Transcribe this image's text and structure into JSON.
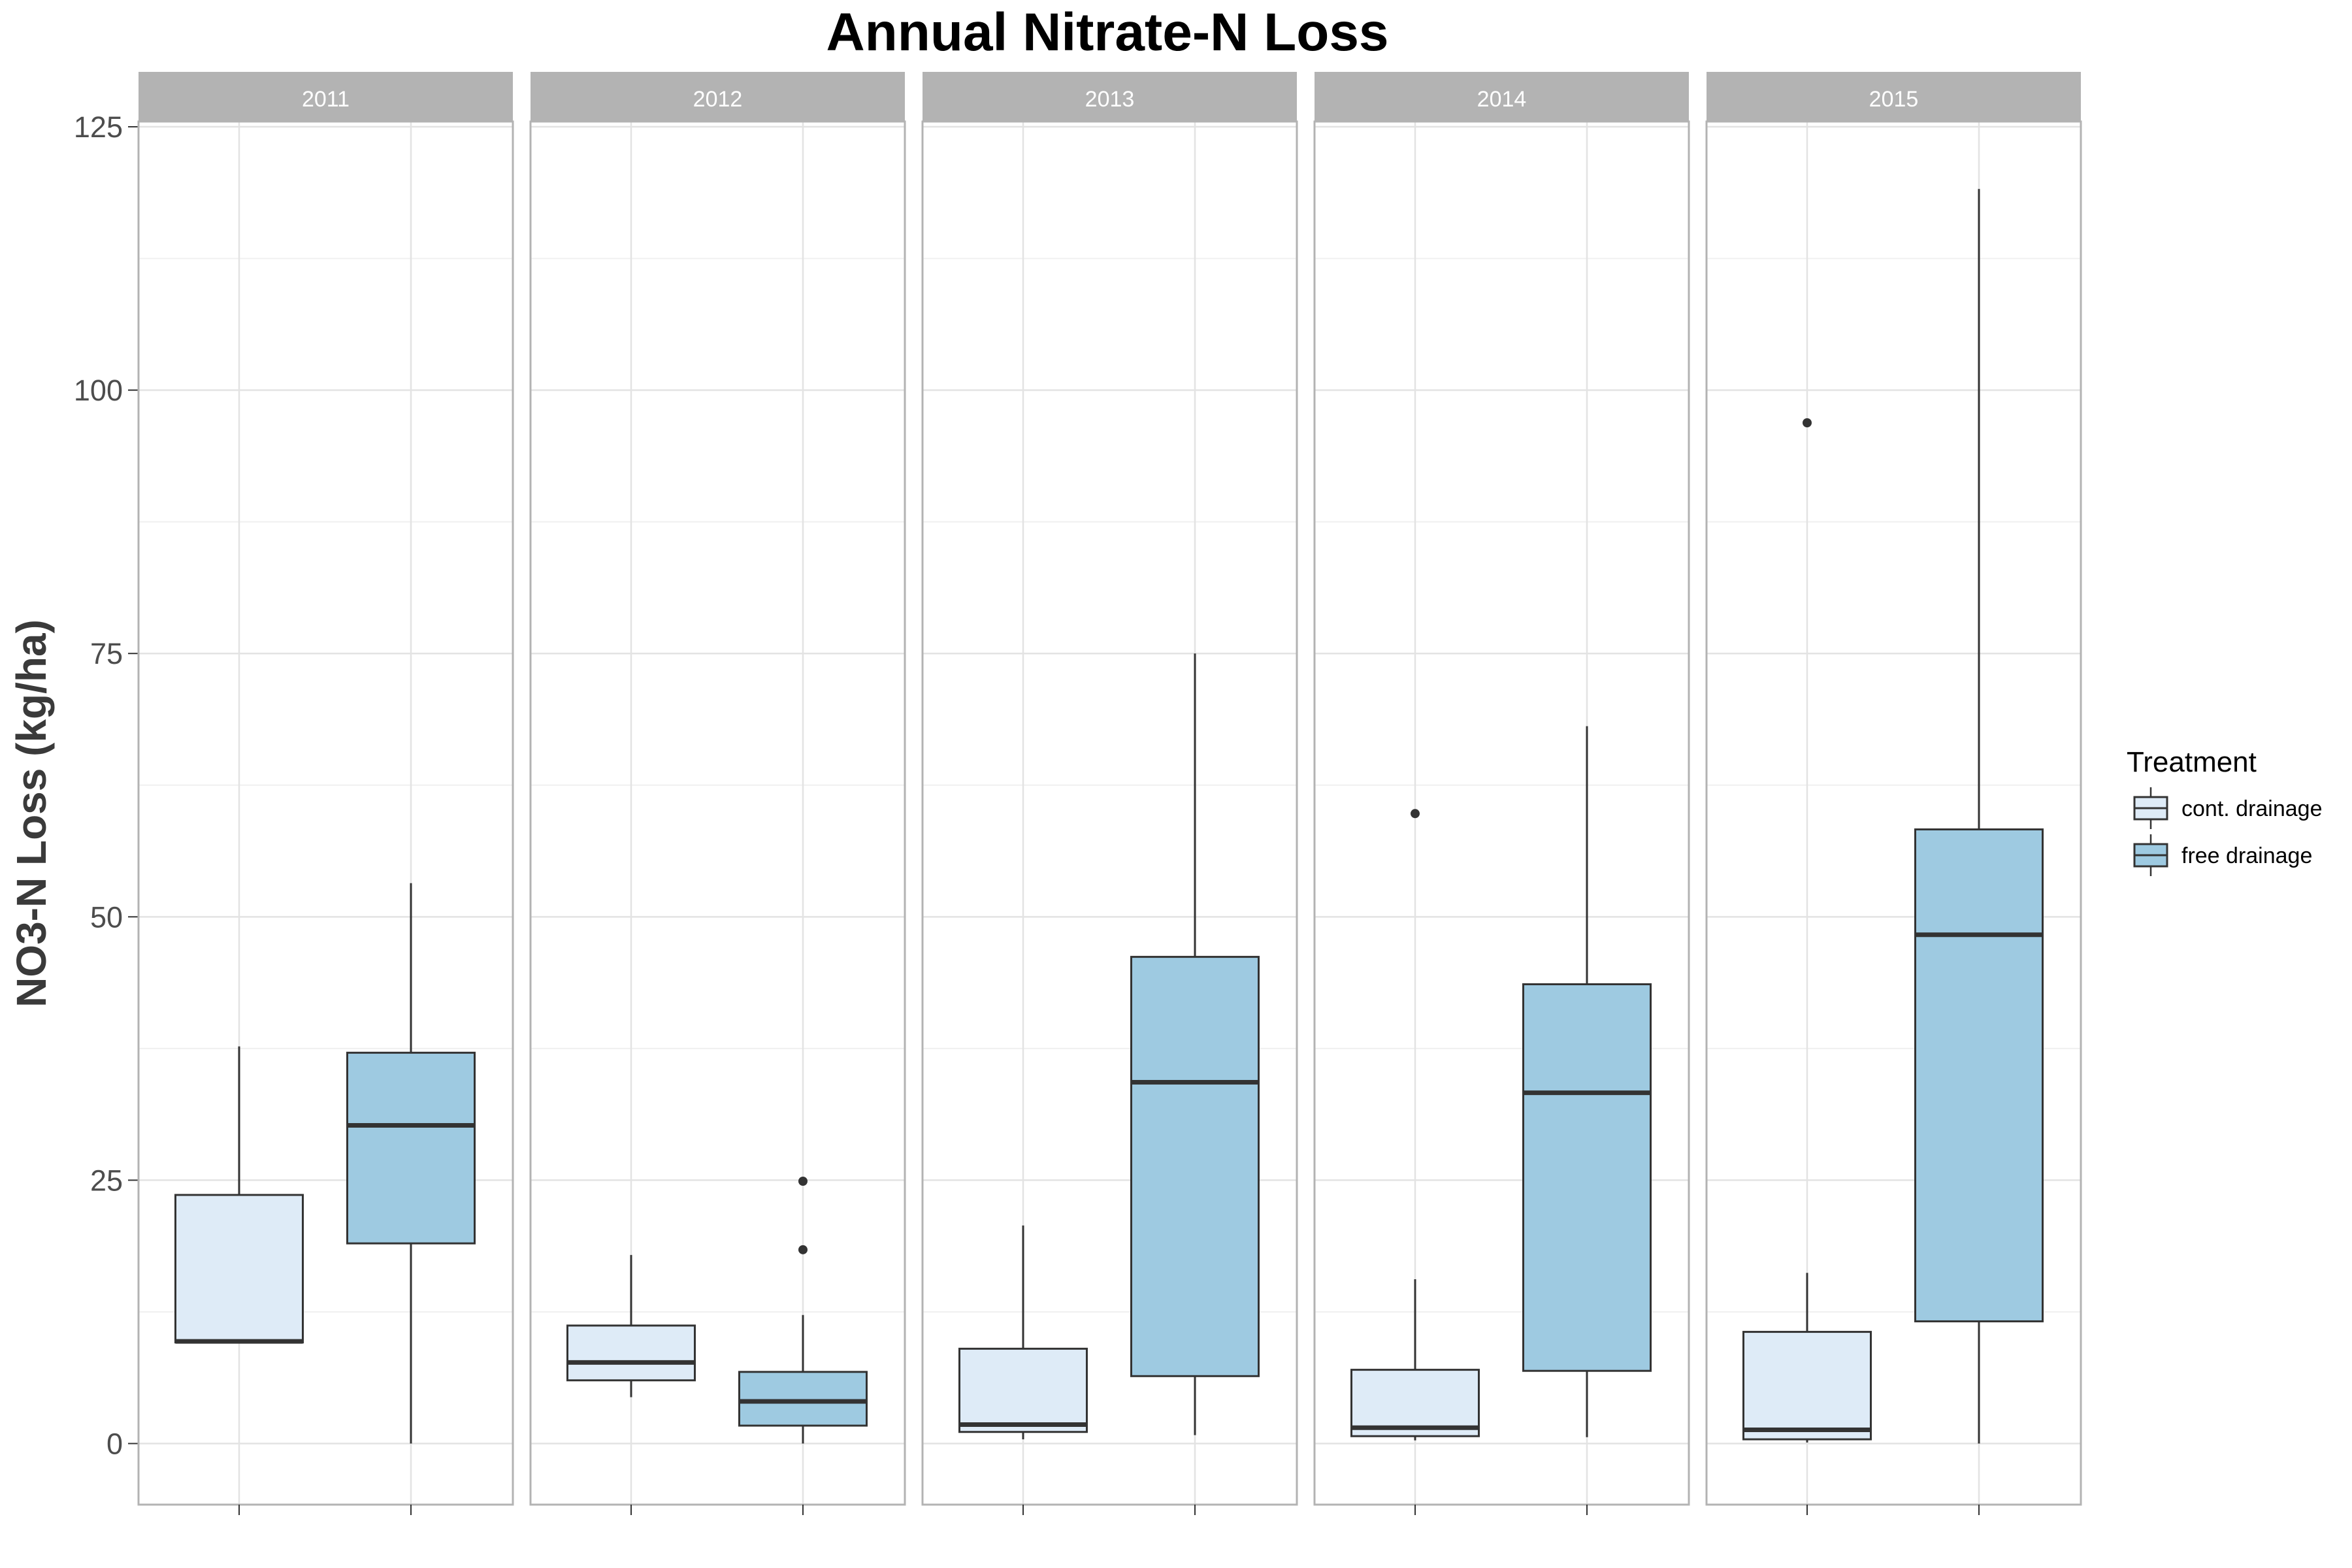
{
  "chart_data": {
    "type": "boxplot",
    "title": "Annual Nitrate-N Loss",
    "ylabel": "NO3-N Loss (kg/ha)",
    "xlabel": "",
    "ylim": [
      -5.8,
      125.5
    ],
    "yticks": [
      0,
      25,
      50,
      75,
      100,
      125
    ],
    "grid": true,
    "legend": {
      "title": "Treatment",
      "placement": "right",
      "items": [
        {
          "label": "cont. drainage",
          "color": "#deebf7"
        },
        {
          "label": "free drainage",
          "color": "#9ecae1"
        }
      ]
    },
    "panels": [
      {
        "label": "2011",
        "boxes": [
          {
            "treatment": "cont. drainage",
            "min": 9.6,
            "q1": 9.6,
            "median": 9.7,
            "q3": 23.6,
            "max": 37.7,
            "outliers": []
          },
          {
            "treatment": "free drainage",
            "min": 0.0,
            "q1": 19.0,
            "median": 30.2,
            "q3": 37.1,
            "max": 53.2,
            "outliers": []
          }
        ]
      },
      {
        "label": "2012",
        "boxes": [
          {
            "treatment": "cont. drainage",
            "min": 4.4,
            "q1": 6.0,
            "median": 7.7,
            "q3": 11.2,
            "max": 17.9,
            "outliers": []
          },
          {
            "treatment": "free drainage",
            "min": 0.0,
            "q1": 1.7,
            "median": 4.0,
            "q3": 6.8,
            "max": 12.2,
            "outliers": [
              18.4,
              24.9
            ]
          }
        ]
      },
      {
        "label": "2013",
        "boxes": [
          {
            "treatment": "cont. drainage",
            "min": 0.4,
            "q1": 1.1,
            "median": 1.8,
            "q3": 9.0,
            "max": 20.7,
            "outliers": []
          },
          {
            "treatment": "free drainage",
            "min": 0.8,
            "q1": 6.4,
            "median": 34.3,
            "q3": 46.2,
            "max": 75.0,
            "outliers": []
          }
        ]
      },
      {
        "label": "2014",
        "boxes": [
          {
            "treatment": "cont. drainage",
            "min": 0.3,
            "q1": 0.7,
            "median": 1.5,
            "q3": 7.0,
            "max": 15.6,
            "outliers": [
              59.8
            ]
          },
          {
            "treatment": "free drainage",
            "min": 0.6,
            "q1": 6.9,
            "median": 33.3,
            "q3": 43.6,
            "max": 68.1,
            "outliers": []
          }
        ]
      },
      {
        "label": "2015",
        "boxes": [
          {
            "treatment": "cont. drainage",
            "min": 0.1,
            "q1": 0.4,
            "median": 1.3,
            "q3": 10.6,
            "max": 16.2,
            "outliers": [
              96.9
            ]
          },
          {
            "treatment": "free drainage",
            "min": 0.0,
            "q1": 11.6,
            "median": 48.3,
            "q3": 58.3,
            "max": 119.1,
            "outliers": []
          }
        ]
      }
    ]
  }
}
